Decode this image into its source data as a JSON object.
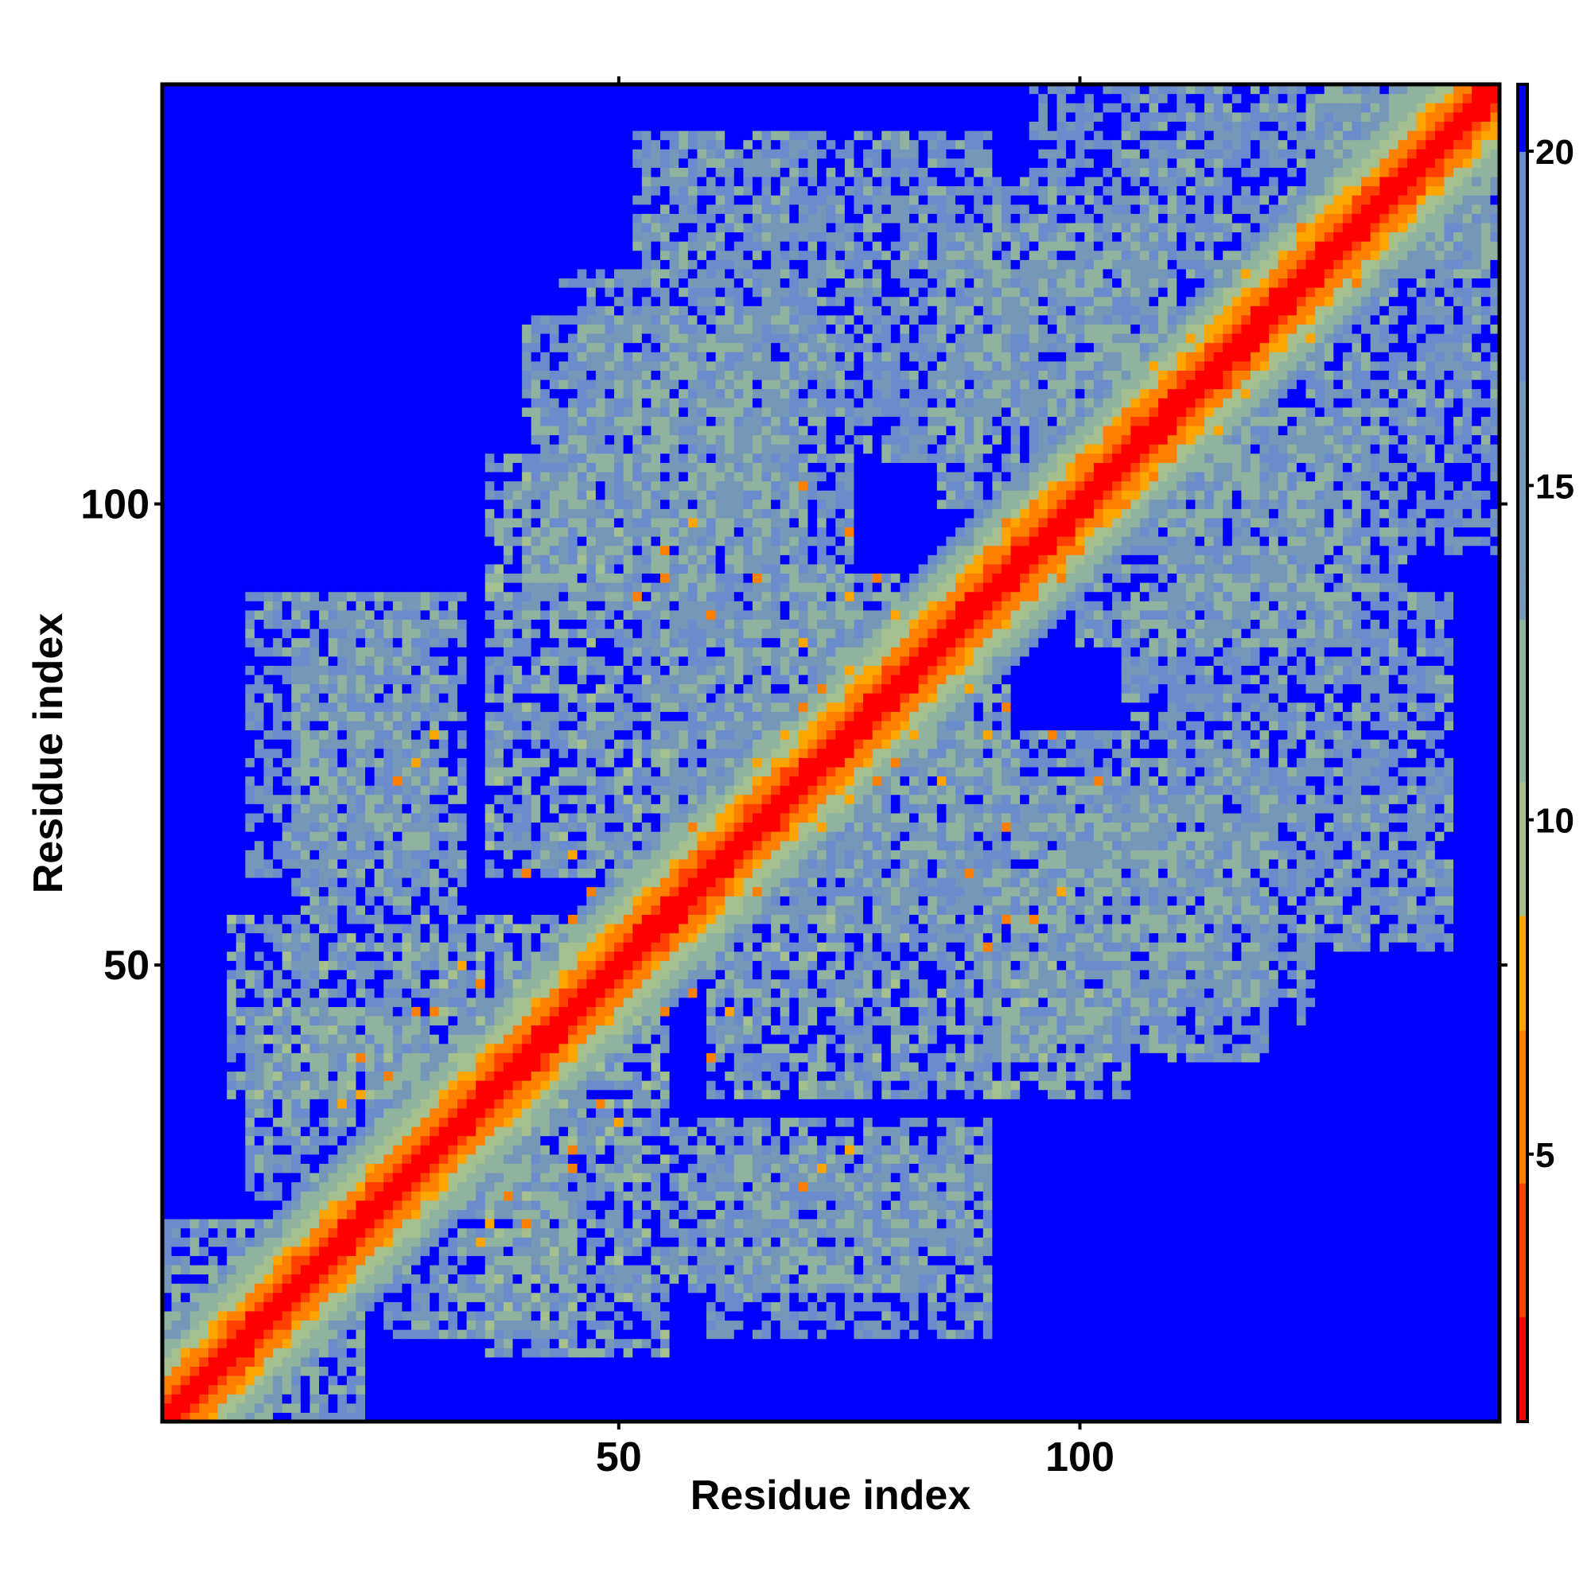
{
  "chart_data": {
    "type": "heatmap",
    "title": "",
    "xlabel": "Residue index",
    "ylabel": "Residue index",
    "n_residues": 145,
    "xlim": [
      1,
      145
    ],
    "ylim": [
      1,
      145
    ],
    "x_ticks": [
      50,
      100
    ],
    "y_ticks": [
      50,
      100
    ],
    "colorbar": {
      "range": [
        1,
        21
      ],
      "ticks": [
        5,
        10,
        15,
        20
      ],
      "colors": [
        {
          "max": 2.6,
          "color": "#ff0000"
        },
        {
          "max": 4.6,
          "color": "#ff4000"
        },
        {
          "max": 6.8,
          "color": "#ff7f00"
        },
        {
          "max": 8.5,
          "color": "#ffa500"
        },
        {
          "max": 10.5,
          "color": "#a5bf8f"
        },
        {
          "max": 13.0,
          "color": "#8fb39f"
        },
        {
          "max": 16.5,
          "color": "#7597b8"
        },
        {
          "max": 20.0,
          "color": "#6a8ccc"
        },
        {
          "max": 999,
          "color": "#0000ff"
        }
      ]
    },
    "background_value": 21,
    "diagonal_profile": [
      {
        "offset": 0,
        "value": 1.0
      },
      {
        "offset": 1,
        "value": 1.8
      },
      {
        "offset": 2,
        "value": 3.0
      },
      {
        "offset": 3,
        "value": 5.0
      },
      {
        "offset": 4,
        "value": 6.5
      },
      {
        "offset": 5,
        "value": 8.6
      },
      {
        "offset": 6,
        "value": 9.6
      },
      {
        "offset": 7,
        "value": 11.0
      },
      {
        "offset": 8,
        "value": 12.5
      },
      {
        "offset": 9,
        "value": 14.5
      },
      {
        "offset": 10,
        "value": 17.0
      }
    ],
    "contact_regions": [
      {
        "i": [
          1,
          12
        ],
        "j": [
          1,
          22
        ],
        "base": 15
      },
      {
        "i": [
          8,
          45
        ],
        "j": [
          36,
          55
        ],
        "base": 14
      },
      {
        "i": [
          15,
          33
        ],
        "j": [
          55,
          90
        ],
        "base": 15
      },
      {
        "i": [
          36,
          55
        ],
        "j": [
          60,
          105
        ],
        "base": 14
      },
      {
        "i": [
          44,
          62
        ],
        "j": [
          104,
          125
        ],
        "base": 16
      },
      {
        "i": [
          52,
          75
        ],
        "j": [
          70,
          140
        ],
        "base": 15
      },
      {
        "i": [
          60,
          90
        ],
        "j": [
          105,
          140
        ],
        "base": 15
      },
      {
        "i": [
          65,
          92
        ],
        "j": [
          55,
          80
        ],
        "base": 15
      },
      {
        "i": [
          88,
          110
        ],
        "j": [
          110,
          135
        ],
        "base": 15
      },
      {
        "i": [
          90,
          120
        ],
        "j": [
          40,
          70
        ],
        "base": 15
      },
      {
        "i": [
          100,
          130
        ],
        "j": [
          85,
          110
        ],
        "base": 15
      },
      {
        "i": [
          25,
          45
        ],
        "j": [
          10,
          30
        ],
        "base": 15
      },
      {
        "i": [
          60,
          90
        ],
        "j": [
          10,
          30
        ],
        "base": 16
      },
      {
        "i": [
          105,
          145
        ],
        "j": [
          125,
          145
        ],
        "base": 15
      },
      {
        "i": [
          95,
          115
        ],
        "j": [
          135,
          145
        ],
        "base": 17
      }
    ],
    "close_contacts": [
      [
        35,
        20
      ],
      [
        36,
        22
      ],
      [
        38,
        25
      ],
      [
        40,
        22
      ],
      [
        45,
        30
      ],
      [
        45,
        28
      ],
      [
        50,
        33
      ],
      [
        48,
        35
      ],
      [
        55,
        45
      ],
      [
        58,
        47
      ],
      [
        60,
        40
      ],
      [
        62,
        45
      ],
      [
        65,
        58
      ],
      [
        68,
        65
      ],
      [
        70,
        66
      ],
      [
        72,
        65
      ],
      [
        75,
        68
      ],
      [
        78,
        70
      ],
      [
        80,
        72
      ],
      [
        82,
        75
      ],
      [
        85,
        70
      ],
      [
        88,
        80
      ],
      [
        90,
        75
      ],
      [
        92,
        78
      ],
      [
        95,
        90
      ],
      [
        98,
        92
      ],
      [
        100,
        95
      ],
      [
        105,
        100
      ],
      [
        108,
        103
      ],
      [
        110,
        105
      ],
      [
        115,
        108
      ],
      [
        118,
        112
      ],
      [
        120,
        115
      ],
      [
        125,
        118
      ],
      [
        130,
        124
      ],
      [
        72,
        28
      ],
      [
        75,
        30
      ],
      [
        70,
        26
      ],
      [
        102,
        70
      ],
      [
        97,
        75
      ],
      [
        92,
        55
      ],
      [
        90,
        52
      ],
      [
        60,
        88
      ],
      [
        65,
        92
      ],
      [
        55,
        95
      ],
      [
        58,
        98
      ]
    ]
  }
}
